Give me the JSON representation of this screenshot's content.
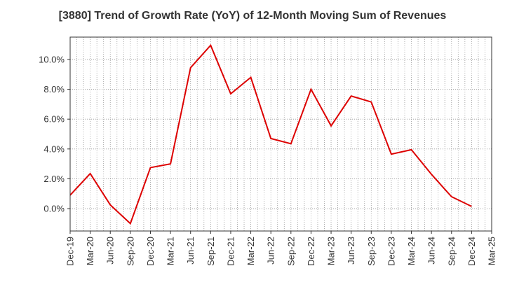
{
  "chart_data": {
    "type": "line",
    "title": "[3880]  Trend of Growth Rate (YoY) of 12-Month Moving Sum of Revenues",
    "xlabel": "",
    "ylabel": "",
    "categories": [
      "Dec-19",
      "Mar-20",
      "Jun-20",
      "Sep-20",
      "Dec-20",
      "Mar-21",
      "Jun-21",
      "Sep-21",
      "Dec-21",
      "Mar-22",
      "Jun-22",
      "Sep-22",
      "Dec-22",
      "Mar-23",
      "Jun-23",
      "Sep-23",
      "Dec-23",
      "Mar-24",
      "Jun-24",
      "Sep-24",
      "Dec-24",
      "Mar-25"
    ],
    "series": [
      {
        "values": [
          0.9,
          2.35,
          0.25,
          -1.0,
          2.75,
          3.0,
          9.45,
          10.95,
          7.7,
          8.8,
          4.7,
          4.35,
          8.0,
          5.55,
          7.55,
          7.15,
          3.65,
          3.95,
          2.3,
          0.8,
          0.15,
          null
        ],
        "color": "#dd0000"
      }
    ],
    "ylim": [
      -1.5,
      11.5
    ],
    "yticks": [
      0,
      2,
      4,
      6,
      8,
      10
    ],
    "ytick_labels": [
      "0.0%",
      "2.0%",
      "4.0%",
      "6.0%",
      "8.0%",
      "10.0%"
    ],
    "grid": true,
    "legend": "none"
  }
}
